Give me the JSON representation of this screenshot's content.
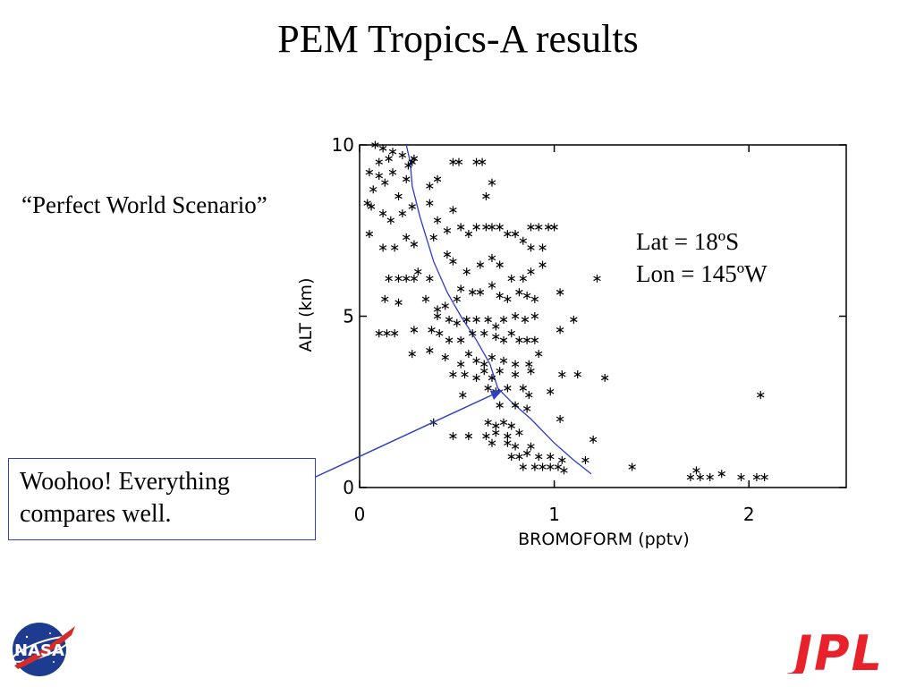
{
  "slide": {
    "title": "PEM Tropics-A results",
    "subtitle": "“Perfect World Scenario”",
    "callout_line1": "Woohoo!  Everything",
    "callout_line2": "compares well.",
    "lat_label": "Lat  = 18ºS",
    "lon_label": "Lon = 145ºW",
    "callout_color": "#2f3fbf"
  },
  "logos": {
    "nasa": {
      "icon": "nasa-meatball-logo",
      "text": "NASA"
    },
    "jpl": {
      "icon": "jpl-logo",
      "text": "JPL",
      "color": "#e8212b"
    }
  },
  "chart_data": {
    "type": "scatter",
    "xlabel": "BROMOFORM (pptv)",
    "ylabel": "ALT (km)",
    "xlim": [
      0,
      2.5
    ],
    "ylim": [
      0,
      10
    ],
    "x_ticks": [
      0,
      1,
      2
    ],
    "y_ticks": [
      0,
      5,
      10
    ],
    "x_tick_labels": [
      "0",
      "1",
      "2"
    ],
    "y_tick_labels": [
      "0",
      "5",
      "10"
    ],
    "grid": false,
    "marker": "asterisk",
    "series": [
      {
        "type": "scatter",
        "points": [
          [
            0.08,
            10.0
          ],
          [
            0.12,
            9.9
          ],
          [
            0.17,
            9.8
          ],
          [
            0.1,
            9.5
          ],
          [
            0.15,
            9.6
          ],
          [
            0.22,
            9.7
          ],
          [
            0.27,
            9.5
          ],
          [
            0.05,
            9.2
          ],
          [
            0.1,
            9.1
          ],
          [
            0.17,
            9.2
          ],
          [
            0.24,
            9.0
          ],
          [
            0.07,
            8.7
          ],
          [
            0.13,
            8.9
          ],
          [
            0.2,
            8.5
          ],
          [
            0.27,
            8.2
          ],
          [
            0.04,
            8.3
          ],
          [
            0.06,
            8.2
          ],
          [
            0.12,
            8.0
          ],
          [
            0.16,
            7.8
          ],
          [
            0.22,
            8.0
          ],
          [
            0.36,
            8.8
          ],
          [
            0.4,
            9.0
          ],
          [
            0.36,
            8.3
          ],
          [
            0.4,
            7.8
          ],
          [
            0.48,
            8.1
          ],
          [
            0.51,
            9.5
          ],
          [
            0.48,
            9.5
          ],
          [
            0.6,
            9.5
          ],
          [
            0.63,
            9.5
          ],
          [
            0.65,
            8.5
          ],
          [
            0.68,
            8.9
          ],
          [
            0.05,
            7.4
          ],
          [
            0.12,
            7.0
          ],
          [
            0.18,
            7.0
          ],
          [
            0.24,
            7.3
          ],
          [
            0.28,
            7.1
          ],
          [
            0.38,
            7.3
          ],
          [
            0.45,
            7.5
          ],
          [
            0.52,
            7.6
          ],
          [
            0.56,
            7.4
          ],
          [
            0.6,
            7.6
          ],
          [
            0.65,
            7.6
          ],
          [
            0.68,
            7.6
          ],
          [
            0.72,
            7.6
          ],
          [
            0.76,
            7.4
          ],
          [
            0.8,
            7.4
          ],
          [
            0.88,
            7.6
          ],
          [
            0.92,
            7.6
          ],
          [
            0.97,
            7.6
          ],
          [
            1.0,
            7.6
          ],
          [
            0.84,
            7.2
          ],
          [
            0.88,
            7.0
          ],
          [
            0.94,
            7.0
          ],
          [
            0.15,
            6.1
          ],
          [
            0.2,
            6.1
          ],
          [
            0.24,
            6.1
          ],
          [
            0.28,
            6.1
          ],
          [
            0.3,
            6.3
          ],
          [
            0.36,
            6.1
          ],
          [
            0.45,
            6.8
          ],
          [
            0.48,
            6.6
          ],
          [
            0.55,
            6.3
          ],
          [
            0.62,
            6.5
          ],
          [
            0.68,
            6.7
          ],
          [
            0.72,
            6.5
          ],
          [
            0.78,
            6.1
          ],
          [
            0.84,
            6.1
          ],
          [
            0.88,
            6.3
          ],
          [
            0.94,
            6.5
          ],
          [
            1.22,
            6.1
          ],
          [
            0.13,
            5.5
          ],
          [
            0.2,
            5.4
          ],
          [
            0.34,
            5.5
          ],
          [
            0.4,
            5.2
          ],
          [
            0.44,
            5.3
          ],
          [
            0.5,
            5.5
          ],
          [
            0.52,
            5.8
          ],
          [
            0.58,
            5.7
          ],
          [
            0.62,
            5.7
          ],
          [
            0.68,
            5.9
          ],
          [
            0.72,
            5.6
          ],
          [
            0.76,
            5.5
          ],
          [
            0.82,
            5.7
          ],
          [
            0.86,
            5.6
          ],
          [
            0.9,
            5.5
          ],
          [
            0.4,
            5.0
          ],
          [
            0.46,
            4.9
          ],
          [
            0.5,
            4.8
          ],
          [
            0.55,
            4.9
          ],
          [
            0.6,
            4.9
          ],
          [
            0.66,
            4.9
          ],
          [
            0.7,
            4.7
          ],
          [
            0.74,
            4.9
          ],
          [
            0.8,
            5.0
          ],
          [
            0.85,
            4.9
          ],
          [
            0.9,
            5.0
          ],
          [
            1.03,
            5.7
          ],
          [
            1.1,
            4.9
          ],
          [
            0.1,
            4.5
          ],
          [
            0.14,
            4.5
          ],
          [
            0.18,
            4.5
          ],
          [
            0.28,
            4.6
          ],
          [
            0.37,
            4.6
          ],
          [
            0.41,
            4.5
          ],
          [
            0.46,
            4.3
          ],
          [
            0.52,
            4.3
          ],
          [
            0.58,
            4.5
          ],
          [
            0.64,
            4.5
          ],
          [
            0.7,
            4.4
          ],
          [
            0.74,
            4.3
          ],
          [
            0.78,
            4.5
          ],
          [
            0.82,
            4.3
          ],
          [
            0.86,
            4.3
          ],
          [
            0.9,
            4.3
          ],
          [
            1.03,
            4.6
          ],
          [
            0.27,
            3.9
          ],
          [
            0.36,
            4.0
          ],
          [
            0.44,
            3.8
          ],
          [
            0.52,
            3.6
          ],
          [
            0.56,
            3.9
          ],
          [
            0.6,
            3.7
          ],
          [
            0.64,
            3.6
          ],
          [
            0.68,
            3.8
          ],
          [
            0.74,
            3.7
          ],
          [
            0.8,
            3.6
          ],
          [
            0.87,
            3.6
          ],
          [
            0.92,
            3.9
          ],
          [
            0.48,
            3.3
          ],
          [
            0.54,
            3.3
          ],
          [
            0.6,
            3.2
          ],
          [
            0.64,
            3.4
          ],
          [
            0.68,
            3.2
          ],
          [
            0.72,
            3.4
          ],
          [
            0.8,
            3.3
          ],
          [
            0.88,
            3.4
          ],
          [
            1.04,
            3.3
          ],
          [
            1.12,
            3.3
          ],
          [
            1.26,
            3.2
          ],
          [
            0.53,
            2.7
          ],
          [
            0.66,
            2.9
          ],
          [
            0.7,
            2.8
          ],
          [
            0.76,
            2.9
          ],
          [
            0.84,
            2.9
          ],
          [
            0.87,
            2.7
          ],
          [
            0.98,
            2.8
          ],
          [
            2.06,
            2.7
          ],
          [
            0.72,
            2.4
          ],
          [
            0.8,
            2.4
          ],
          [
            0.86,
            2.3
          ],
          [
            0.38,
            1.9
          ],
          [
            0.66,
            1.9
          ],
          [
            0.7,
            1.8
          ],
          [
            0.74,
            1.9
          ],
          [
            0.78,
            1.8
          ],
          [
            1.03,
            2.0
          ],
          [
            0.65,
            1.5
          ],
          [
            0.7,
            1.6
          ],
          [
            0.76,
            1.5
          ],
          [
            0.82,
            1.6
          ],
          [
            0.48,
            1.5
          ],
          [
            0.56,
            1.5
          ],
          [
            0.68,
            1.3
          ],
          [
            0.76,
            1.3
          ],
          [
            0.8,
            1.2
          ],
          [
            0.88,
            1.2
          ],
          [
            1.2,
            1.4
          ],
          [
            0.78,
            0.9
          ],
          [
            0.82,
            0.9
          ],
          [
            0.86,
            1.0
          ],
          [
            0.92,
            0.9
          ],
          [
            0.98,
            0.9
          ],
          [
            1.04,
            0.8
          ],
          [
            1.16,
            0.8
          ],
          [
            0.84,
            0.6
          ],
          [
            0.9,
            0.6
          ],
          [
            0.94,
            0.6
          ],
          [
            0.98,
            0.6
          ],
          [
            1.02,
            0.6
          ],
          [
            1.05,
            0.5
          ],
          [
            1.4,
            0.6
          ],
          [
            1.7,
            0.3
          ],
          [
            1.75,
            0.3
          ],
          [
            1.8,
            0.3
          ],
          [
            1.73,
            0.5
          ],
          [
            1.86,
            0.4
          ],
          [
            1.96,
            0.3
          ],
          [
            2.04,
            0.3
          ],
          [
            2.08,
            0.3
          ],
          [
            0.28,
            9.6
          ],
          [
            0.25,
            9.4
          ]
        ]
      },
      {
        "type": "line",
        "color": "#2a3acf",
        "points": [
          [
            0.24,
            10.0
          ],
          [
            0.26,
            9.5
          ],
          [
            0.27,
            8.8
          ],
          [
            0.31,
            7.9
          ],
          [
            0.38,
            6.6
          ],
          [
            0.45,
            5.7
          ],
          [
            0.52,
            5.0
          ],
          [
            0.6,
            4.3
          ],
          [
            0.67,
            3.6
          ],
          [
            0.71,
            2.9
          ],
          [
            0.78,
            2.5
          ],
          [
            0.88,
            2.0
          ],
          [
            1.0,
            1.3
          ],
          [
            1.1,
            0.8
          ],
          [
            1.19,
            0.4
          ]
        ]
      }
    ]
  }
}
